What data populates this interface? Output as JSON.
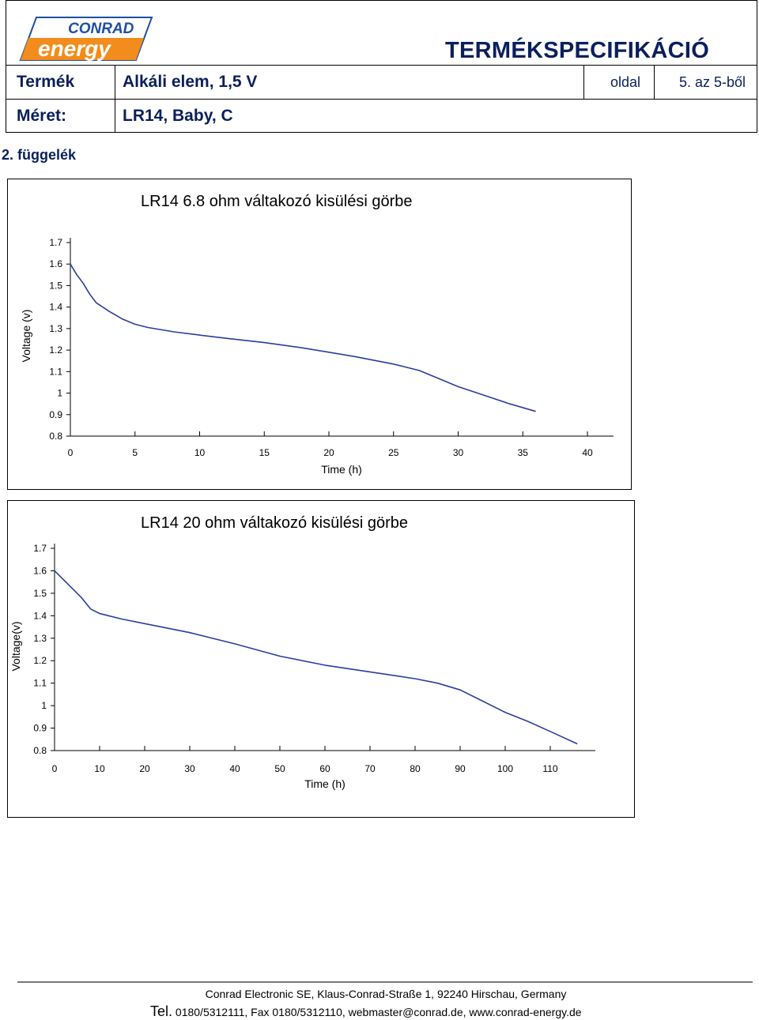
{
  "header": {
    "logo_text_top": "CONRAD",
    "logo_text_bottom": "energy",
    "doc_title": "TERMÉKSPECIFIKÁCIÓ",
    "product_label": "Termék",
    "product_value": "Alkáli elem, 1,5 V",
    "page_label": "oldal",
    "page_value": "5. az 5-ből",
    "size_label": "Méret:",
    "size_value": "LR14, Baby, C"
  },
  "appendix_label": "2. függelék",
  "colors": {
    "curve": "#2b3ea0",
    "header_text": "#0a1f5c",
    "logo_orange": "#f28c1c",
    "logo_blue": "#1f4fa0"
  },
  "chart_data": [
    {
      "type": "line",
      "title": "LR14 6.8 ohm váltakozó kisülési görbe",
      "xlabel": "Time (h)",
      "ylabel": "Voltage (v)",
      "xlim": [
        0,
        40
      ],
      "ylim": [
        0.8,
        1.7
      ],
      "xticks": [
        "0",
        "5",
        "10",
        "15",
        "20",
        "25",
        "30",
        "35",
        "40"
      ],
      "yticks": [
        "0.8",
        "0.9",
        "1",
        "1.1",
        "1.2",
        "1.3",
        "1.4",
        "1.5",
        "1.6",
        "1.7"
      ],
      "grid": false,
      "series": [
        {
          "x": [
            0,
            0.5,
            1,
            1.5,
            2,
            3,
            4,
            5,
            6,
            8,
            10,
            12,
            15,
            18,
            20,
            22,
            25,
            27,
            28,
            30,
            32,
            34,
            36
          ],
          "y": [
            1.6,
            1.55,
            1.51,
            1.46,
            1.42,
            1.38,
            1.345,
            1.32,
            1.305,
            1.285,
            1.27,
            1.255,
            1.235,
            1.21,
            1.19,
            1.17,
            1.135,
            1.105,
            1.08,
            1.03,
            0.99,
            0.95,
            0.915
          ]
        }
      ]
    },
    {
      "type": "line",
      "title": "LR14 20 ohm váltakozó kisülési görbe",
      "xlabel": "Time (h)",
      "ylabel": "Voltage(v)",
      "xlim": [
        0,
        120
      ],
      "ylim": [
        0.8,
        1.7
      ],
      "xticks": [
        "0",
        "10",
        "20",
        "30",
        "40",
        "50",
        "60",
        "70",
        "80",
        "90",
        "100",
        "110"
      ],
      "yticks": [
        "0.8",
        "0.9",
        "1",
        "1.1",
        "1.2",
        "1.3",
        "1.4",
        "1.5",
        "1.6",
        "1.7"
      ],
      "grid": false,
      "series": [
        {
          "x": [
            0,
            2,
            4,
            6,
            8,
            10,
            15,
            20,
            30,
            40,
            50,
            60,
            70,
            80,
            85,
            90,
            95,
            100,
            105,
            110,
            116
          ],
          "y": [
            1.6,
            1.56,
            1.52,
            1.48,
            1.43,
            1.41,
            1.385,
            1.365,
            1.325,
            1.275,
            1.22,
            1.18,
            1.15,
            1.12,
            1.1,
            1.07,
            1.02,
            0.97,
            0.93,
            0.885,
            0.83
          ]
        }
      ]
    }
  ],
  "footer": {
    "address": "Conrad Electronic SE, Klaus-Conrad-Straße 1, 92240 Hirschau, Germany",
    "tel_label": "Tel.",
    "contact": "0180/5312111, Fax 0180/5312110, webmaster@conrad.de, www.conrad-energy.de"
  }
}
